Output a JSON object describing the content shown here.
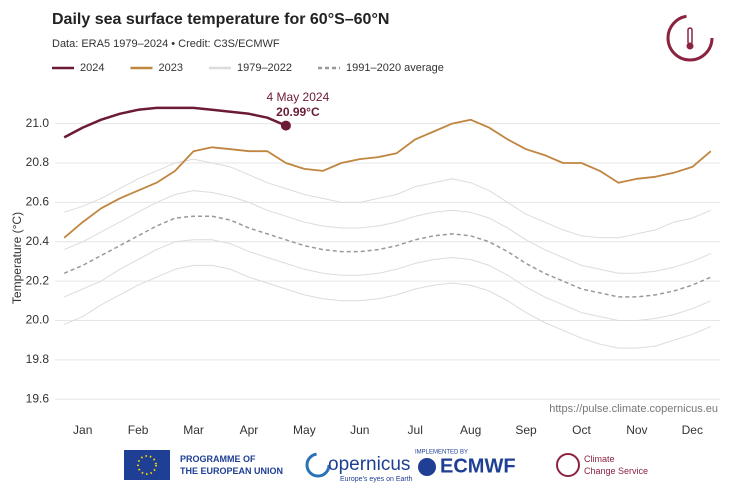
{
  "chart_data": {
    "type": "line",
    "title": "Daily sea surface temperature for 60°S–60°N",
    "subtitle": "Data: ERA5 1979–2024  •  Credit: C3S/ECMWF",
    "y_label": "Temperature (°C)",
    "source_url": "https://pulse.climate.copernicus.eu",
    "categories": [
      null,
      "Jan",
      null,
      null,
      "Feb",
      null,
      null,
      "Mar",
      null,
      null,
      "Apr",
      null,
      null,
      "May",
      null,
      null,
      "Jun",
      null,
      null,
      "Jul",
      null,
      null,
      "Aug",
      null,
      null,
      "Sep",
      null,
      null,
      "Oct",
      null,
      null,
      "Nov",
      null,
      null,
      "Dec",
      null
    ],
    "ylim": [
      19.52,
      21.12
    ],
    "yticks": [
      19.6,
      19.8,
      {
        "value": 20,
        "label": "20.0"
      },
      20.2,
      20.4,
      20.6,
      20.8,
      {
        "value": 21,
        "label": "21.0"
      }
    ],
    "grid": true,
    "series": [
      {
        "name": "2024",
        "color": "#6b1b36",
        "values": [
          20.93,
          20.98,
          21.02,
          21.05,
          21.07,
          21.08,
          21.08,
          21.08,
          21.07,
          21.06,
          21.05,
          21.03,
          20.99,
          null,
          null,
          null,
          null,
          null,
          null,
          null,
          null,
          null,
          null,
          null,
          null,
          null,
          null,
          null,
          null,
          null,
          null,
          null,
          null,
          null,
          null,
          null
        ]
      },
      {
        "name": "2023",
        "color": "#c0853f",
        "values": [
          20.42,
          20.5,
          20.57,
          20.62,
          20.66,
          20.7,
          20.76,
          20.86,
          20.88,
          20.87,
          20.86,
          20.86,
          20.8,
          20.77,
          20.76,
          20.8,
          20.82,
          20.83,
          20.85,
          20.92,
          20.96,
          21.0,
          21.02,
          20.98,
          20.92,
          20.87,
          20.84,
          20.8,
          20.8,
          20.76,
          20.7,
          20.72,
          20.73,
          20.75,
          20.78,
          20.86
        ]
      },
      {
        "name": "1979–2022",
        "color": "#dcdcdc",
        "lines": [
          [
            20.55,
            20.58,
            20.62,
            20.67,
            20.72,
            20.76,
            20.8,
            20.82,
            20.8,
            20.78,
            20.74,
            20.7,
            20.67,
            20.64,
            20.62,
            20.6,
            20.6,
            20.62,
            20.64,
            20.68,
            20.7,
            20.72,
            20.7,
            20.66,
            20.6,
            20.54,
            20.5,
            20.46,
            20.43,
            20.42,
            20.42,
            20.44,
            20.46,
            20.5,
            20.52,
            20.56
          ],
          [
            20.36,
            20.4,
            20.45,
            20.5,
            20.55,
            20.6,
            20.64,
            20.66,
            20.65,
            20.63,
            20.6,
            20.56,
            20.53,
            20.5,
            20.48,
            20.47,
            20.47,
            20.48,
            20.5,
            20.53,
            20.55,
            20.56,
            20.55,
            20.52,
            20.47,
            20.41,
            20.36,
            20.32,
            20.28,
            20.26,
            20.24,
            20.24,
            20.25,
            20.27,
            20.3,
            20.34
          ],
          [
            20.12,
            20.16,
            20.2,
            20.26,
            20.31,
            20.36,
            20.4,
            20.41,
            20.41,
            20.39,
            20.35,
            20.32,
            20.29,
            20.26,
            20.24,
            20.23,
            20.23,
            20.24,
            20.26,
            20.29,
            20.31,
            20.32,
            20.31,
            20.28,
            20.23,
            20.17,
            20.12,
            20.08,
            20.04,
            20.02,
            20.0,
            20.0,
            20.01,
            20.03,
            20.06,
            20.1
          ],
          [
            19.98,
            20.02,
            20.08,
            20.13,
            20.18,
            20.22,
            20.26,
            20.28,
            20.28,
            20.26,
            20.22,
            20.19,
            20.16,
            20.13,
            20.11,
            20.1,
            20.1,
            20.11,
            20.13,
            20.16,
            20.18,
            20.19,
            20.18,
            20.15,
            20.1,
            20.04,
            19.99,
            19.95,
            19.91,
            19.88,
            19.86,
            19.86,
            19.87,
            19.9,
            19.93,
            19.97
          ]
        ]
      },
      {
        "name": "1991–2020 average",
        "color": "#999999",
        "dashed": true,
        "values": [
          20.24,
          20.28,
          20.33,
          20.38,
          20.43,
          20.48,
          20.52,
          20.53,
          20.53,
          20.51,
          20.47,
          20.44,
          20.41,
          20.38,
          20.36,
          20.35,
          20.35,
          20.36,
          20.38,
          20.41,
          20.43,
          20.44,
          20.43,
          20.4,
          20.35,
          20.29,
          20.24,
          20.2,
          20.16,
          20.14,
          20.12,
          20.12,
          20.13,
          20.15,
          20.18,
          20.22
        ]
      }
    ],
    "annotation": {
      "date": "4 May 2024",
      "label": "20.99°C",
      "value": 20.99
    }
  },
  "footer": {
    "eu": "PROGRAMME OF THE EUROPEAN UNION",
    "copernicus": "opernicus",
    "copernicus_sub": "Europe's eyes on Earth",
    "ecmwf_pre": "IMPLEMENTED BY",
    "ecmwf": "ECMWF",
    "c3s": "Climate Change Service"
  }
}
